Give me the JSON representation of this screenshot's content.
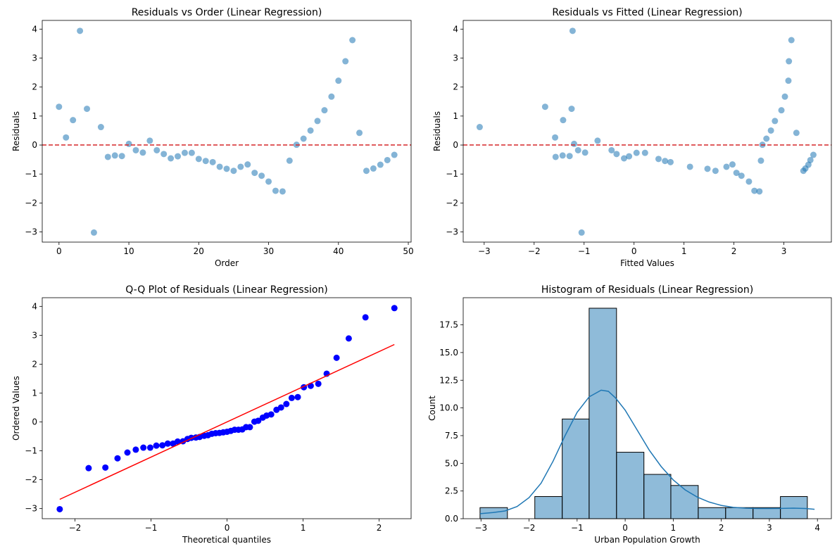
{
  "chart_data": [
    {
      "type": "scatter",
      "title": "Residuals vs Order (Linear Regression)",
      "xlabel": "Order",
      "ylabel": "Residuals",
      "xlim": [
        -2.4,
        50.4
      ],
      "ylim": [
        -3.35,
        4.3
      ],
      "xticks": [
        0,
        10,
        20,
        30,
        40,
        50
      ],
      "yticks": [
        -3,
        -2,
        -1,
        0,
        1,
        2,
        3,
        4
      ],
      "reference_line": {
        "y": 0,
        "style": "dashed",
        "color": "#d62728"
      },
      "point_color": "#1f77b4",
      "point_alpha": 0.55,
      "points": [
        [
          0,
          1.32
        ],
        [
          1,
          0.26
        ],
        [
          2,
          0.86
        ],
        [
          3,
          3.94
        ],
        [
          4,
          1.25
        ],
        [
          5,
          -3.02
        ],
        [
          6,
          0.62
        ],
        [
          7,
          -0.41
        ],
        [
          8,
          -0.36
        ],
        [
          9,
          -0.38
        ],
        [
          10,
          0.04
        ],
        [
          11,
          -0.18
        ],
        [
          12,
          -0.26
        ],
        [
          13,
          0.15
        ],
        [
          14,
          -0.18
        ],
        [
          15,
          -0.31
        ],
        [
          16,
          -0.46
        ],
        [
          17,
          -0.39
        ],
        [
          18,
          -0.27
        ],
        [
          19,
          -0.27
        ],
        [
          20,
          -0.48
        ],
        [
          21,
          -0.55
        ],
        [
          22,
          -0.59
        ],
        [
          23,
          -0.75
        ],
        [
          24,
          -0.82
        ],
        [
          25,
          -0.89
        ],
        [
          26,
          -0.75
        ],
        [
          27,
          -0.67
        ],
        [
          28,
          -0.96
        ],
        [
          29,
          -1.06
        ],
        [
          30,
          -1.26
        ],
        [
          31,
          -1.58
        ],
        [
          32,
          -1.6
        ],
        [
          33,
          -0.54
        ],
        [
          34,
          0.01
        ],
        [
          35,
          0.22
        ],
        [
          36,
          0.5
        ],
        [
          37,
          0.83
        ],
        [
          38,
          1.2
        ],
        [
          39,
          1.67
        ],
        [
          40,
          2.22
        ],
        [
          41,
          2.89
        ],
        [
          42,
          3.62
        ],
        [
          43,
          0.42
        ],
        [
          44,
          -0.89
        ],
        [
          45,
          -0.81
        ],
        [
          46,
          -0.68
        ],
        [
          47,
          -0.52
        ],
        [
          48,
          -0.34
        ]
      ]
    },
    {
      "type": "scatter",
      "title": "Residuals vs Fitted (Linear Regression)",
      "xlabel": "Fitted Values",
      "ylabel": "Residuals",
      "xlim": [
        -3.42,
        3.95
      ],
      "ylim": [
        -3.35,
        4.3
      ],
      "xticks": [
        -3,
        -2,
        -1,
        0,
        1,
        2,
        3
      ],
      "yticks": [
        -3,
        -2,
        -1,
        0,
        1,
        2,
        3,
        4
      ],
      "reference_line": {
        "y": 0,
        "style": "dashed",
        "color": "#d62728"
      },
      "point_color": "#1f77b4",
      "point_alpha": 0.55,
      "points": [
        [
          -3.09,
          0.62
        ],
        [
          -1.78,
          1.32
        ],
        [
          -1.58,
          0.26
        ],
        [
          -1.42,
          0.86
        ],
        [
          -1.23,
          3.94
        ],
        [
          -1.25,
          1.25
        ],
        [
          -1.05,
          -3.02
        ],
        [
          -1.57,
          -0.41
        ],
        [
          -1.43,
          -0.36
        ],
        [
          -1.29,
          -0.38
        ],
        [
          -1.2,
          0.04
        ],
        [
          -1.12,
          -0.18
        ],
        [
          -0.98,
          -0.26
        ],
        [
          -0.73,
          0.15
        ],
        [
          -0.45,
          -0.18
        ],
        [
          -0.35,
          -0.31
        ],
        [
          -0.2,
          -0.46
        ],
        [
          -0.1,
          -0.39
        ],
        [
          0.05,
          -0.27
        ],
        [
          0.22,
          -0.27
        ],
        [
          0.49,
          -0.48
        ],
        [
          0.62,
          -0.55
        ],
        [
          0.73,
          -0.59
        ],
        [
          1.12,
          -0.75
        ],
        [
          1.47,
          -0.82
        ],
        [
          1.63,
          -0.89
        ],
        [
          1.97,
          -0.67
        ],
        [
          1.85,
          -0.75
        ],
        [
          2.05,
          -0.96
        ],
        [
          2.15,
          -1.06
        ],
        [
          2.3,
          -1.26
        ],
        [
          2.41,
          -1.58
        ],
        [
          2.51,
          -1.6
        ],
        [
          2.54,
          -0.54
        ],
        [
          2.57,
          0.01
        ],
        [
          2.65,
          0.22
        ],
        [
          2.74,
          0.5
        ],
        [
          2.82,
          0.83
        ],
        [
          2.95,
          1.2
        ],
        [
          3.02,
          1.67
        ],
        [
          3.09,
          2.22
        ],
        [
          3.1,
          2.89
        ],
        [
          3.15,
          3.62
        ],
        [
          3.25,
          0.42
        ],
        [
          3.39,
          -0.89
        ],
        [
          3.43,
          -0.81
        ],
        [
          3.49,
          -0.68
        ],
        [
          3.53,
          -0.52
        ],
        [
          3.59,
          -0.34
        ]
      ]
    },
    {
      "type": "scatter",
      "title": "Q-Q Plot of Residuals (Linear Regression)",
      "xlabel": "Theoretical quantiles",
      "ylabel": "Ordered Values",
      "xlim": [
        -2.43,
        2.42
      ],
      "ylim": [
        -3.35,
        4.3
      ],
      "xticks": [
        -2,
        -1,
        0,
        1,
        2
      ],
      "yticks": [
        -3,
        -2,
        -1,
        0,
        1,
        2,
        3,
        4
      ],
      "fit_line": {
        "x": [
          -2.2,
          2.2
        ],
        "y": [
          -2.68,
          2.68
        ],
        "color": "#ff0000"
      },
      "point_color": "#0000ff",
      "theoretical": [
        -2.2,
        -1.82,
        -1.6,
        -1.44,
        -1.31,
        -1.2,
        -1.1,
        -1.01,
        -0.93,
        -0.85,
        -0.78,
        -0.71,
        -0.65,
        -0.58,
        -0.52,
        -0.47,
        -0.41,
        -0.36,
        -0.3,
        -0.25,
        -0.2,
        -0.15,
        -0.1,
        -0.05,
        0.0,
        0.05,
        0.1,
        0.15,
        0.2,
        0.25,
        0.3,
        0.36,
        0.41,
        0.47,
        0.52,
        0.58,
        0.65,
        0.71,
        0.78,
        0.85,
        0.93,
        1.01,
        1.1,
        1.2,
        1.31,
        1.44,
        1.6,
        1.82,
        2.2
      ],
      "ordered": [
        -3.02,
        -1.6,
        -1.58,
        -1.26,
        -1.06,
        -0.96,
        -0.89,
        -0.89,
        -0.82,
        -0.81,
        -0.75,
        -0.75,
        -0.68,
        -0.67,
        -0.59,
        -0.55,
        -0.54,
        -0.52,
        -0.48,
        -0.46,
        -0.41,
        -0.39,
        -0.38,
        -0.36,
        -0.34,
        -0.31,
        -0.27,
        -0.27,
        -0.26,
        -0.18,
        -0.18,
        0.01,
        0.04,
        0.15,
        0.22,
        0.26,
        0.42,
        0.5,
        0.62,
        0.83,
        0.86,
        1.2,
        1.25,
        1.32,
        1.67,
        2.22,
        2.89,
        3.62,
        3.94
      ]
    },
    {
      "type": "bar",
      "title": "Histogram of Residuals (Linear Regression)",
      "xlabel": "Urban Population Growth",
      "ylabel": "Count",
      "xlim": [
        -3.37,
        4.29
      ],
      "ylim": [
        0,
        19.95
      ],
      "xticks": [
        -3,
        -2,
        -1,
        0,
        1,
        2,
        3,
        4
      ],
      "yticks": [
        0.0,
        2.5,
        5.0,
        7.5,
        10.0,
        12.5,
        15.0,
        17.5
      ],
      "ytick_labels": [
        "0.0",
        "2.5",
        "5.0",
        "7.5",
        "10.0",
        "12.5",
        "15.0",
        "17.5"
      ],
      "bar_color": "#1f77b4",
      "bar_alpha": 0.5,
      "bin_edges": [
        -3.02,
        -2.45,
        -1.88,
        -1.31,
        -0.75,
        -0.18,
        0.39,
        0.95,
        1.52,
        2.09,
        2.66,
        3.23,
        3.79
      ],
      "counts": [
        1,
        0,
        2,
        9,
        19,
        6,
        4,
        3,
        1,
        1,
        1,
        2
      ],
      "kde": {
        "color": "#1f77b4",
        "x": [
          -3.02,
          -2.75,
          -2.5,
          -2.25,
          -2.0,
          -1.75,
          -1.5,
          -1.25,
          -1.0,
          -0.75,
          -0.5,
          -0.35,
          -0.2,
          0.0,
          0.25,
          0.5,
          0.75,
          1.0,
          1.25,
          1.5,
          1.75,
          2.0,
          2.25,
          2.5,
          2.75,
          3.0,
          3.25,
          3.5,
          3.75,
          3.94
        ],
        "y": [
          0.45,
          0.55,
          0.7,
          1.1,
          1.9,
          3.2,
          5.2,
          7.5,
          9.6,
          11.0,
          11.6,
          11.5,
          10.9,
          9.8,
          8.0,
          6.2,
          4.7,
          3.5,
          2.6,
          1.95,
          1.5,
          1.2,
          1.02,
          0.95,
          0.92,
          0.92,
          0.93,
          0.95,
          0.92,
          0.85
        ]
      }
    }
  ]
}
